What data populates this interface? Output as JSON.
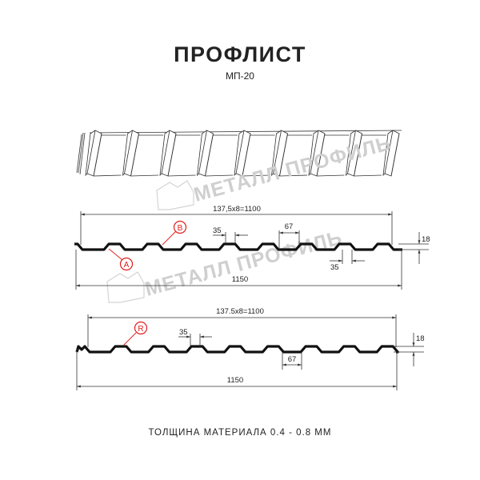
{
  "header": {
    "title": "ПРОФЛИСТ",
    "subtitle": "МП-20"
  },
  "watermark": {
    "text": "МЕТАЛЛ ПРОФИЛЬ"
  },
  "diagram_top": {
    "pitch_label": "137,5x8=1100",
    "total_label": "1150",
    "height_label": "18",
    "crest_label": "35",
    "trough_width_label": "67",
    "bottom_label": "35",
    "marker_a": "A",
    "marker_b": "B"
  },
  "diagram_bottom": {
    "pitch_label": "137.5x8=1100",
    "total_label": "1150",
    "height_label": "18",
    "crest_label": "35",
    "trough_width_label": "67",
    "marker_r": "R"
  },
  "footer": {
    "thickness": "ТОЛЩИНА МАТЕРИАЛА 0.4 - 0.8 ММ"
  },
  "colors": {
    "marker": "#e21b1b",
    "profile": "#111111",
    "watermark": "#cfcfcf"
  }
}
